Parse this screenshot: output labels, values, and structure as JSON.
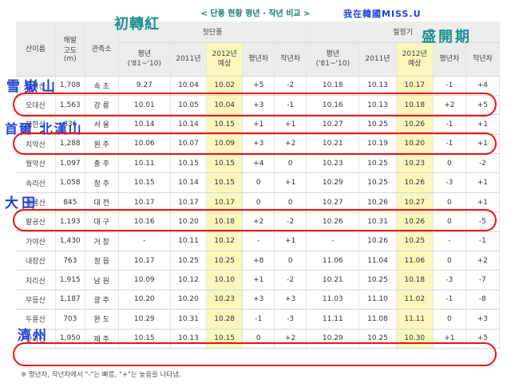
{
  "page_title": "< 단풍 현황 평년 · 작년 비교 >",
  "headers": {
    "mountain": "산이름",
    "elevation": "해발\n고도\n(m)",
    "office": "관측소",
    "first_group": "첫단풍",
    "peak_group": "절정기",
    "normal": "평년\n('81~'10)",
    "year2011": "2011년",
    "forecast2012": "2012년\n예상",
    "diff_normal": "평년차",
    "diff_last": "작년차"
  },
  "rows": [
    {
      "name": "설악산",
      "alt": "1,708",
      "office": "속 초",
      "f": [
        "9.27",
        "10.04",
        "10.02",
        "+5",
        "-2"
      ],
      "p": [
        "10.18",
        "10.13",
        "10.17",
        "-1",
        "+4"
      ]
    },
    {
      "name": "오대산",
      "alt": "1,563",
      "office": "강 릉",
      "f": [
        "10.01",
        "10.05",
        "10.04",
        "+3",
        "-1"
      ],
      "p": [
        "10.16",
        "10.13",
        "10.18",
        "+2",
        "+5"
      ]
    },
    {
      "name": "북한산",
      "alt": "836",
      "office": "서 울",
      "f": [
        "10.14",
        "10.14",
        "10.15",
        "+1",
        "+1"
      ],
      "p": [
        "10.27",
        "10.25",
        "10.26",
        "-1",
        "+1"
      ]
    },
    {
      "name": "치악산",
      "alt": "1,288",
      "office": "원 주",
      "f": [
        "10.06",
        "10.07",
        "10.09",
        "+3",
        "+2"
      ],
      "p": [
        "10.21",
        "10.19",
        "10.20",
        "-1",
        "+1"
      ]
    },
    {
      "name": "월악산",
      "alt": "1,097",
      "office": "충 주",
      "f": [
        "10.11",
        "10.15",
        "10.15",
        "+4",
        "0"
      ],
      "p": [
        "10.23",
        "10.25",
        "10.23",
        "0",
        "-2"
      ]
    },
    {
      "name": "속리산",
      "alt": "1,058",
      "office": "청 주",
      "f": [
        "10.15",
        "10.14",
        "10.15",
        "0",
        "+1"
      ],
      "p": [
        "10.29",
        "10.25",
        "10.26",
        "-3",
        "+1"
      ]
    },
    {
      "name": "계룡산",
      "alt": "845",
      "office": "대 전",
      "f": [
        "10.17",
        "10.17",
        "10.17",
        "0",
        "0"
      ],
      "p": [
        "10.27",
        "10.26",
        "10.27",
        "0",
        "+1"
      ]
    },
    {
      "name": "팔공산",
      "alt": "1,193",
      "office": "대 구",
      "f": [
        "10.16",
        "10.20",
        "10.18",
        "+2",
        "-2"
      ],
      "p": [
        "10.26",
        "10.31",
        "10.26",
        "0",
        "-5"
      ]
    },
    {
      "name": "가야산",
      "alt": "1,430",
      "office": "거 창",
      "f": [
        "-",
        "10.11",
        "10.12",
        "-",
        "+1"
      ],
      "p": [
        "-",
        "10.26",
        "10.25",
        "-",
        "-1"
      ]
    },
    {
      "name": "내장산",
      "alt": "763",
      "office": "정 읍",
      "f": [
        "10.17",
        "10.25",
        "10.25",
        "+8",
        "0"
      ],
      "p": [
        "11.06",
        "11.04",
        "11.06",
        "0",
        "+2"
      ]
    },
    {
      "name": "지리산",
      "alt": "1,915",
      "office": "남 원",
      "f": [
        "10.09",
        "10.12",
        "10.10",
        "+1",
        "-2"
      ],
      "p": [
        "10.21",
        "10.25",
        "10.18",
        "-3",
        "-7"
      ]
    },
    {
      "name": "무등산",
      "alt": "1,187",
      "office": "광 주",
      "f": [
        "10.20",
        "10.20",
        "10.23",
        "+3",
        "+3"
      ],
      "p": [
        "11.03",
        "11.10",
        "11.02",
        "-1",
        "-8"
      ]
    },
    {
      "name": "두륜산",
      "alt": "703",
      "office": "완 도",
      "f": [
        "10.29",
        "10.31",
        "10.28",
        "-1",
        "-3"
      ],
      "p": [
        "11.11",
        "11.08",
        "11.11",
        "0",
        "+3"
      ]
    },
    {
      "name": "한라산",
      "alt": "1,950",
      "office": "제 주",
      "f": [
        "10.15",
        "10.13",
        "10.15",
        "0",
        "+2"
      ],
      "p": [
        "10.29",
        "10.25",
        "10.30",
        "+1",
        "+5"
      ]
    }
  ],
  "note": "※ 평년차, 작년차에서 \"-\"는 빠름, \"+\"는 늦음을 나타냄.",
  "annotations": {
    "first_foliage": "初轉紅",
    "peak": "盛開期",
    "credit": "我在韓國MISS.U",
    "m_seorak": "雪嶽山",
    "m_bukhan": "首爾 北漢山",
    "m_daejeon": "大田",
    "m_jeju": "濟州"
  },
  "colors": {
    "highlight": "#fbf6bd",
    "oval": "#f01010",
    "annotation_blue": "#1e3fd6",
    "annotation_teal": "#1a8e8e"
  }
}
